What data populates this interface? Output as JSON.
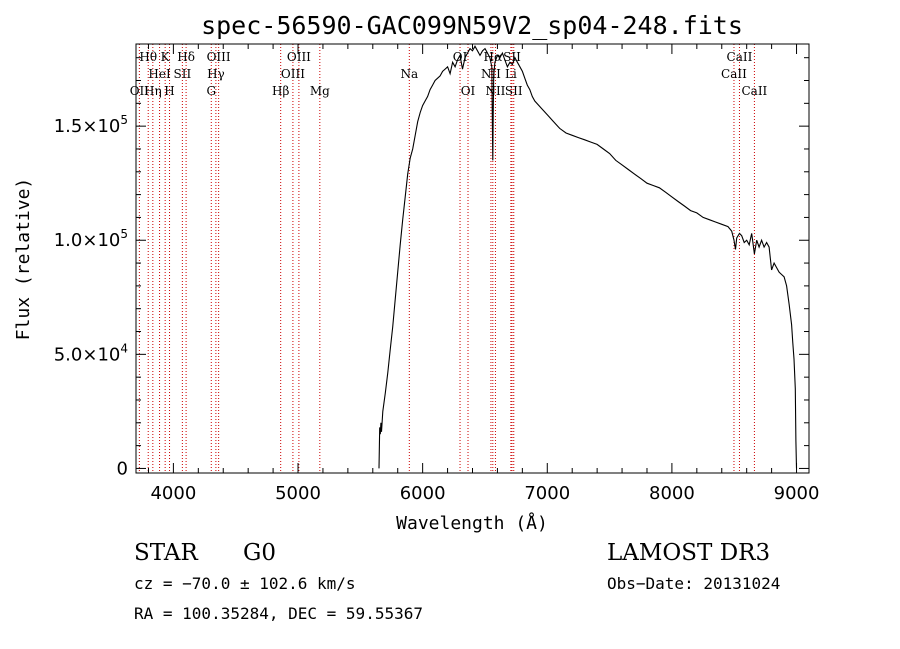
{
  "colors": {
    "line_marker": "#cc0000",
    "spectrum": "#000000",
    "axes": "#000000"
  },
  "chart_data": {
    "type": "line",
    "title": "spec-56590-GAC099N59V2_sp04-248.fits",
    "xlabel": "Wavelength (Å)",
    "ylabel": "Flux (relative)",
    "xlim": [
      3700,
      9100
    ],
    "ylim": [
      -2000,
      186000
    ],
    "x_ticks": [
      {
        "value": 4000,
        "label": "4000"
      },
      {
        "value": 5000,
        "label": "5000"
      },
      {
        "value": 6000,
        "label": "6000"
      },
      {
        "value": 7000,
        "label": "7000"
      },
      {
        "value": 8000,
        "label": "8000"
      },
      {
        "value": 9000,
        "label": "9000"
      }
    ],
    "y_ticks": [
      {
        "value": 0,
        "mantissa": "0",
        "exp": ""
      },
      {
        "value": 50000,
        "mantissa": "5.0×10",
        "exp": "4"
      },
      {
        "value": 100000,
        "mantissa": "1.0×10",
        "exp": "5"
      },
      {
        "value": 150000,
        "mantissa": "1.5×10",
        "exp": "5"
      }
    ],
    "spectrum": {
      "x": [
        5650,
        5655,
        5660,
        5665,
        5670,
        5680,
        5700,
        5720,
        5740,
        5760,
        5780,
        5800,
        5820,
        5840,
        5860,
        5880,
        5900,
        5920,
        5940,
        5960,
        5980,
        6000,
        6020,
        6040,
        6060,
        6080,
        6100,
        6120,
        6140,
        6160,
        6180,
        6200,
        6220,
        6240,
        6260,
        6280,
        6300,
        6320,
        6340,
        6360,
        6380,
        6400,
        6420,
        6440,
        6460,
        6480,
        6500,
        6520,
        6540,
        6555,
        6560,
        6563,
        6566,
        6570,
        6580,
        6600,
        6620,
        6640,
        6660,
        6680,
        6700,
        6720,
        6740,
        6760,
        6780,
        6800,
        6820,
        6840,
        6860,
        6880,
        6900,
        6950,
        7000,
        7050,
        7100,
        7150,
        7200,
        7250,
        7300,
        7350,
        7400,
        7450,
        7500,
        7550,
        7600,
        7650,
        7700,
        7750,
        7800,
        7850,
        7900,
        7950,
        8000,
        8050,
        8100,
        8150,
        8200,
        8250,
        8300,
        8350,
        8400,
        8450,
        8480,
        8498,
        8510,
        8520,
        8542,
        8560,
        8580,
        8600,
        8620,
        8640,
        8662,
        8680,
        8700,
        8720,
        8740,
        8760,
        8780,
        8800,
        8820,
        8840,
        8860,
        8880,
        8900,
        8920,
        8940,
        8960,
        8970,
        8980,
        8990,
        8995,
        9000
      ],
      "y": [
        0,
        18000,
        15000,
        20000,
        16000,
        25000,
        33000,
        42000,
        52000,
        62000,
        74000,
        86000,
        98000,
        109000,
        119000,
        129000,
        136000,
        140000,
        146000,
        152000,
        156000,
        159000,
        161000,
        163000,
        166000,
        168000,
        170000,
        171000,
        172000,
        174000,
        175000,
        176000,
        173000,
        178000,
        176000,
        179000,
        181000,
        175000,
        180000,
        182000,
        184000,
        183000,
        185000,
        183000,
        181000,
        183000,
        184000,
        182000,
        180000,
        176000,
        150000,
        135000,
        155000,
        172000,
        178000,
        181000,
        180000,
        182000,
        179000,
        176000,
        178000,
        177000,
        180000,
        178000,
        176000,
        174000,
        171000,
        168000,
        166000,
        163000,
        161000,
        158000,
        155000,
        152000,
        149000,
        147000,
        146000,
        145000,
        144000,
        143000,
        142000,
        140000,
        138000,
        135000,
        133000,
        131000,
        129000,
        127000,
        125000,
        124000,
        123000,
        121000,
        119000,
        117000,
        115000,
        113000,
        112000,
        110000,
        109000,
        108000,
        107000,
        106000,
        104000,
        100000,
        96000,
        101000,
        103000,
        102000,
        99000,
        100000,
        98000,
        103000,
        94000,
        100000,
        97000,
        100000,
        97000,
        99000,
        97000,
        87000,
        90000,
        88000,
        86000,
        85000,
        84000,
        80000,
        72000,
        63000,
        55000,
        48000,
        35000,
        12000,
        0
      ]
    },
    "reference_lines": [
      {
        "label": "OII",
        "wavelength": 3727,
        "row": 2
      },
      {
        "label": "Hθ",
        "wavelength": 3798,
        "row": 0
      },
      {
        "label": "Hη",
        "wavelength": 3835,
        "row": 2
      },
      {
        "label": "HeI",
        "wavelength": 3889,
        "row": 1
      },
      {
        "label": "K",
        "wavelength": 3934,
        "row": 0
      },
      {
        "label": "H",
        "wavelength": 3969,
        "row": 2
      },
      {
        "label": "SII",
        "wavelength": 4072,
        "row": 1
      },
      {
        "label": "Hδ",
        "wavelength": 4102,
        "row": 0
      },
      {
        "label": "OIII",
        "wavelength": 4363,
        "row": 0
      },
      {
        "label": "Hγ",
        "wavelength": 4341,
        "row": 1
      },
      {
        "label": "G",
        "wavelength": 4304,
        "row": 2
      },
      {
        "label": "Hβ",
        "wavelength": 4861,
        "row": 2
      },
      {
        "label": "OIII",
        "wavelength": 4959,
        "row": 1
      },
      {
        "label": "OIII",
        "wavelength": 5007,
        "row": 0
      },
      {
        "label": "Mg",
        "wavelength": 5175,
        "row": 2
      },
      {
        "label": "Na",
        "wavelength": 5893,
        "row": 1
      },
      {
        "label": "OI",
        "wavelength": 6300,
        "row": 0
      },
      {
        "label": "OI",
        "wavelength": 6364,
        "row": 2
      },
      {
        "label": "NII",
        "wavelength": 6548,
        "row": 1
      },
      {
        "label": "Hα",
        "wavelength": 6563,
        "row": 0
      },
      {
        "label": "NII",
        "wavelength": 6584,
        "row": 2
      },
      {
        "label": "Li",
        "wavelength": 6708,
        "row": 1
      },
      {
        "label": "SII",
        "wavelength": 6717,
        "row": 0
      },
      {
        "label": "SII",
        "wavelength": 6731,
        "row": 2
      },
      {
        "label": "CaII",
        "wavelength": 8498,
        "row": 1
      },
      {
        "label": "CaII",
        "wavelength": 8542,
        "row": 0
      },
      {
        "label": "CaII",
        "wavelength": 8662,
        "row": 2
      }
    ]
  },
  "footer": {
    "object_class": "STAR",
    "subclass": "G0",
    "survey": "LAMOST DR3",
    "cz": "cz = −70.0 ± 102.6 km/s",
    "obs_date": "Obs−Date: 20131024",
    "coords": "RA = 100.35284, DEC =  59.55367"
  }
}
